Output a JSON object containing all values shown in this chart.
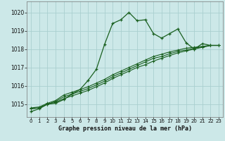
{
  "xlabel": "Graphe pression niveau de la mer (hPa)",
  "ylim": [
    1014.3,
    1020.6
  ],
  "xlim": [
    -0.5,
    23.5
  ],
  "yticks": [
    1015,
    1016,
    1017,
    1018,
    1019,
    1020
  ],
  "xticks": [
    0,
    1,
    2,
    3,
    4,
    5,
    6,
    7,
    8,
    9,
    10,
    11,
    12,
    13,
    14,
    15,
    16,
    17,
    18,
    19,
    20,
    21,
    22,
    23
  ],
  "bg_color": "#cce8e8",
  "grid_color": "#aacfcf",
  "line_color": "#1a6020",
  "line1": [
    1014.6,
    1014.75,
    1015.0,
    1015.05,
    1015.25,
    1015.55,
    1015.8,
    1016.3,
    1016.9,
    1018.25,
    1019.4,
    1019.6,
    1020.0,
    1019.55,
    1019.6,
    1018.85,
    1018.6,
    1018.85,
    1019.1,
    1018.35,
    1018.0,
    1018.3,
    1018.2,
    1018.2
  ],
  "line2": [
    1014.75,
    1014.8,
    1015.0,
    1015.1,
    1015.3,
    1015.45,
    1015.6,
    1015.75,
    1015.95,
    1016.15,
    1016.4,
    1016.6,
    1016.8,
    1017.0,
    1017.15,
    1017.35,
    1017.5,
    1017.65,
    1017.8,
    1017.9,
    1018.0,
    1018.1,
    1018.2,
    1018.2
  ],
  "line3": [
    1014.75,
    1014.8,
    1015.0,
    1015.15,
    1015.4,
    1015.55,
    1015.7,
    1015.85,
    1016.05,
    1016.25,
    1016.5,
    1016.7,
    1016.9,
    1017.1,
    1017.3,
    1017.5,
    1017.6,
    1017.75,
    1017.88,
    1017.95,
    1018.05,
    1018.12,
    1018.2,
    1018.2
  ],
  "line4": [
    1014.8,
    1014.85,
    1015.05,
    1015.2,
    1015.5,
    1015.65,
    1015.8,
    1015.95,
    1016.15,
    1016.35,
    1016.6,
    1016.8,
    1017.0,
    1017.2,
    1017.4,
    1017.6,
    1017.72,
    1017.85,
    1017.95,
    1018.05,
    1018.1,
    1018.15,
    1018.2,
    1018.2
  ]
}
